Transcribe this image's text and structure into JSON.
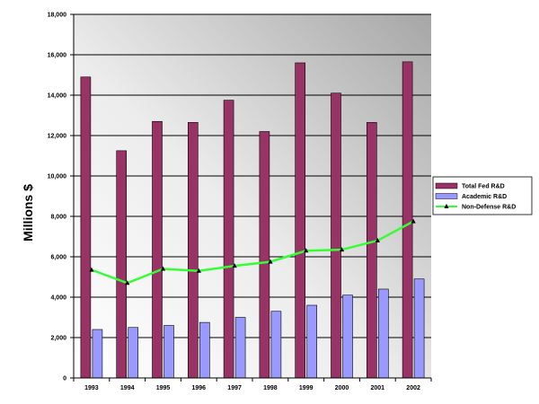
{
  "chart_data": {
    "type": "bar",
    "title": "",
    "xlabel": "",
    "ylabel": "Millions $",
    "ylim": [
      0,
      18000
    ],
    "ytick_step": 2000,
    "grid": true,
    "legend_position": "right",
    "categories": [
      "1993",
      "1994",
      "1995",
      "1996",
      "1997",
      "1998",
      "1999",
      "2000",
      "2001",
      "2002"
    ],
    "series": [
      {
        "name": "Total Fed R&D",
        "kind": "bar",
        "color": "#993366",
        "values": [
          14900,
          11250,
          12700,
          12650,
          13750,
          12200,
          15600,
          14100,
          12650,
          15650
        ]
      },
      {
        "name": "Academic R&D",
        "kind": "bar",
        "color": "#9999ff",
        "values": [
          2400,
          2500,
          2600,
          2750,
          3000,
          3300,
          3600,
          4100,
          4400,
          4900
        ]
      },
      {
        "name": "Non-Defense R&D",
        "kind": "line",
        "color": "#33ff33",
        "marker_color": "#000000",
        "values": [
          5350,
          4700,
          5400,
          5300,
          5550,
          5750,
          6300,
          6350,
          6800,
          7750
        ]
      }
    ]
  }
}
